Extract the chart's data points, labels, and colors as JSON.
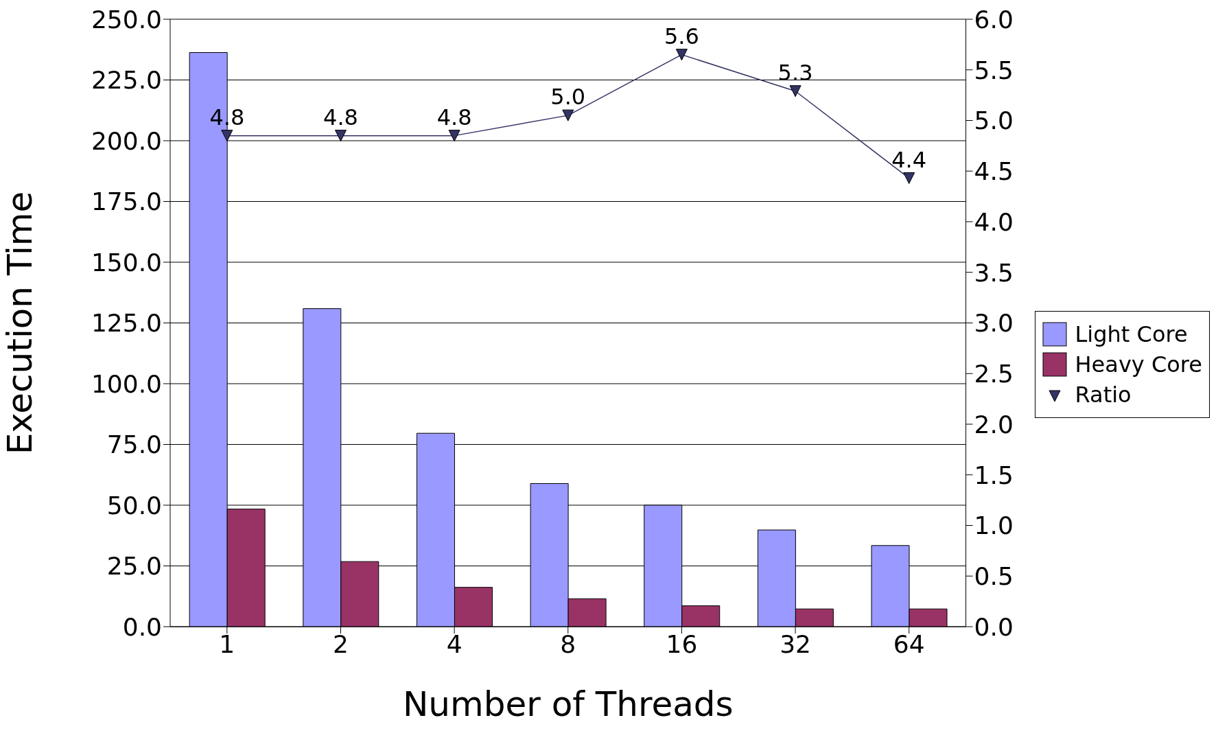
{
  "chart_data": {
    "type": "bar",
    "xlabel": "Number of Threads",
    "ylabel": "Execution Time",
    "categories": [
      "1",
      "2",
      "4",
      "8",
      "16",
      "32",
      "64"
    ],
    "series": [
      {
        "name": "Light Core",
        "color": "#9999ff",
        "values": [
          236.3,
          130.9,
          79.6,
          58.9,
          50.0,
          39.8,
          33.4
        ]
      },
      {
        "name": "Heavy Core",
        "color": "#993366",
        "values": [
          48.4,
          26.8,
          16.2,
          11.5,
          8.6,
          7.3,
          7.3
        ]
      },
      {
        "name": "Ratio",
        "type": "line",
        "axis": "y2",
        "color": "#333366",
        "marker": "triangle",
        "values": [
          4.85,
          4.85,
          4.85,
          5.05,
          5.65,
          5.29,
          4.43
        ],
        "value_labels": [
          "4.8",
          "4.8",
          "4.8",
          "5.0",
          "5.6",
          "5.3",
          "4.4"
        ]
      }
    ],
    "ylim": [
      0,
      250
    ],
    "yticks": [
      {
        "value": 0,
        "label": "0.0"
      },
      {
        "value": 25,
        "label": "25.0"
      },
      {
        "value": 50,
        "label": "50.0"
      },
      {
        "value": 75,
        "label": "75.0"
      },
      {
        "value": 100,
        "label": "100.0"
      },
      {
        "value": 125,
        "label": "125.0"
      },
      {
        "value": 150,
        "label": "150.0"
      },
      {
        "value": 175,
        "label": "175.0"
      },
      {
        "value": 200,
        "label": "200.0"
      },
      {
        "value": 225,
        "label": "225.0"
      },
      {
        "value": 250,
        "label": "250.0"
      }
    ],
    "y2lim": [
      0,
      6
    ],
    "y2ticks": [
      {
        "value": 0,
        "label": "0.0"
      },
      {
        "value": 0.5,
        "label": "0.5"
      },
      {
        "value": 1,
        "label": "1.0"
      },
      {
        "value": 1.5,
        "label": "1.5"
      },
      {
        "value": 2,
        "label": "2.0"
      },
      {
        "value": 2.5,
        "label": "2.5"
      },
      {
        "value": 3,
        "label": "3.0"
      },
      {
        "value": 3.5,
        "label": "3.5"
      },
      {
        "value": 4,
        "label": "4.0"
      },
      {
        "value": 4.5,
        "label": "4.5"
      },
      {
        "value": 5,
        "label": "5.0"
      },
      {
        "value": 5.5,
        "label": "5.5"
      },
      {
        "value": 6,
        "label": "6.0"
      }
    ],
    "grid": "y",
    "legend": "right"
  }
}
